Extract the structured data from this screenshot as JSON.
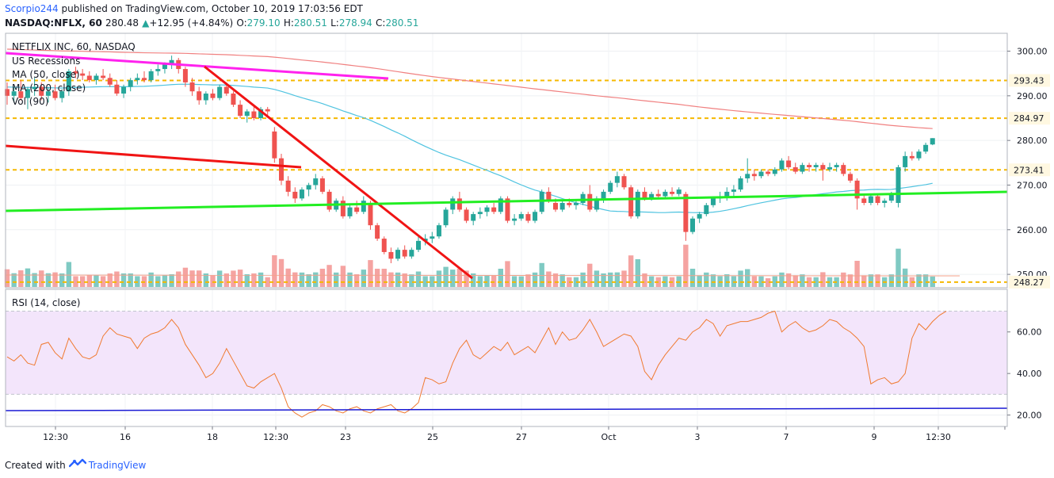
{
  "header": {
    "author": "Scorpio244",
    "published": "published on TradingView.com, October 10, 2019 17:03:56 EDT",
    "symbol": "NASDAQ:NFLX, 60",
    "last": "280.48",
    "change_arrow": "▲",
    "change": "+12.95 (+4.84%)",
    "o_label": "O:",
    "o_value": "279.10",
    "h_label": "H:",
    "h_value": "280.51",
    "l_label": "L:",
    "l_value": "278.94",
    "c_label": "C:",
    "c_value": "280.51"
  },
  "legend": {
    "title": "NETFLIX INC, 60, NASDAQ",
    "items": [
      "US Recessions",
      "MA (50, close)",
      "MA (200, close)",
      "Vol (90)"
    ],
    "rsi_title": "RSI (14, close)"
  },
  "footer": {
    "created_with": "Created with",
    "brand": "TradingView"
  },
  "colors": {
    "up": "#26a69a",
    "down": "#ef5350",
    "ma50": "#4fc3e0",
    "ma200": "#f08080",
    "magenta": "#ff22ee",
    "red_line": "#f01414",
    "green_line": "#22ee22",
    "hline": "#f5b800",
    "rsi": "#f07a30",
    "rsi_band": "#f3e5fb",
    "rsi_blue": "#1a1ad4",
    "vol_up": "#7fcac3",
    "vol_down": "#f5a3a1"
  },
  "chart_data": [
    {
      "type": "candlestick",
      "name": "NETFLIX INC, 60, NASDAQ",
      "y_axis": {
        "range": [
          247,
          304
        ],
        "ticks": [
          250,
          260,
          270,
          280,
          290,
          300
        ],
        "tick_labels": [
          "250.00",
          "260.00",
          "270.00",
          "280.00",
          "290.00",
          "300.00"
        ]
      },
      "x_axis": {
        "tick_labels": [
          "12:30",
          "16",
          "18",
          "12:30",
          "23",
          "25",
          "27",
          "Oct",
          "3",
          "7",
          "9",
          "12:30"
        ]
      },
      "price_levels": [
        {
          "value": 293.43,
          "label": "293.43"
        },
        {
          "value": 284.97,
          "label": "284.97"
        },
        {
          "value": 273.41,
          "label": "273.41"
        },
        {
          "value": 248.27,
          "label": "248.27"
        }
      ],
      "last_price": {
        "value": 280.51,
        "label": "280.51"
      },
      "candles": [
        {
          "o": 291.5,
          "h": 293,
          "l": 288,
          "c": 290
        },
        {
          "o": 290,
          "h": 292,
          "l": 288.5,
          "c": 291
        },
        {
          "o": 291,
          "h": 293.5,
          "l": 289,
          "c": 289.5
        },
        {
          "o": 289.5,
          "h": 292,
          "l": 287,
          "c": 291.5
        },
        {
          "o": 291.5,
          "h": 294,
          "l": 290,
          "c": 292
        },
        {
          "o": 292,
          "h": 293,
          "l": 289,
          "c": 290
        },
        {
          "o": 290,
          "h": 292,
          "l": 288.5,
          "c": 291
        },
        {
          "o": 291,
          "h": 292.5,
          "l": 289,
          "c": 289.5
        },
        {
          "o": 289.5,
          "h": 291.5,
          "l": 288.5,
          "c": 291
        },
        {
          "o": 291,
          "h": 296,
          "l": 290,
          "c": 295.5
        },
        {
          "o": 295.5,
          "h": 296.5,
          "l": 294,
          "c": 295
        },
        {
          "o": 295,
          "h": 296,
          "l": 293.5,
          "c": 294.5
        },
        {
          "o": 294.5,
          "h": 295.5,
          "l": 293,
          "c": 293.5
        },
        {
          "o": 293.5,
          "h": 295,
          "l": 292.5,
          "c": 294.5
        },
        {
          "o": 294.5,
          "h": 296,
          "l": 293.5,
          "c": 294
        },
        {
          "o": 294,
          "h": 295,
          "l": 292,
          "c": 292.5
        },
        {
          "o": 292.5,
          "h": 293.5,
          "l": 290,
          "c": 290.5
        },
        {
          "o": 290.5,
          "h": 292.5,
          "l": 289.5,
          "c": 292
        },
        {
          "o": 292,
          "h": 294,
          "l": 291,
          "c": 293.5
        },
        {
          "o": 293.5,
          "h": 295,
          "l": 292.5,
          "c": 294
        },
        {
          "o": 294,
          "h": 295.5,
          "l": 293,
          "c": 293.5
        },
        {
          "o": 293.5,
          "h": 296,
          "l": 293,
          "c": 295.5
        },
        {
          "o": 295.5,
          "h": 297,
          "l": 294.5,
          "c": 296
        },
        {
          "o": 296,
          "h": 297.5,
          "l": 295,
          "c": 297
        },
        {
          "o": 297,
          "h": 299,
          "l": 296,
          "c": 298
        },
        {
          "o": 298,
          "h": 298.5,
          "l": 295,
          "c": 296
        },
        {
          "o": 296,
          "h": 296.5,
          "l": 292,
          "c": 293
        },
        {
          "o": 293,
          "h": 294,
          "l": 290,
          "c": 291
        },
        {
          "o": 291,
          "h": 292,
          "l": 288,
          "c": 289
        },
        {
          "o": 289,
          "h": 291,
          "l": 288,
          "c": 290.5
        },
        {
          "o": 290.5,
          "h": 291.5,
          "l": 289,
          "c": 289.5
        },
        {
          "o": 289.5,
          "h": 292.5,
          "l": 289,
          "c": 292
        },
        {
          "o": 292,
          "h": 293,
          "l": 290,
          "c": 290.5
        },
        {
          "o": 290.5,
          "h": 291,
          "l": 287.5,
          "c": 288
        },
        {
          "o": 288,
          "h": 289,
          "l": 285,
          "c": 285.5
        },
        {
          "o": 285.5,
          "h": 287,
          "l": 284,
          "c": 286.5
        },
        {
          "o": 286.5,
          "h": 287.5,
          "l": 284.5,
          "c": 285
        },
        {
          "o": 285,
          "h": 287.5,
          "l": 284.5,
          "c": 287
        },
        {
          "o": 287,
          "h": 287.5,
          "l": 285.5,
          "c": 286.5
        },
        {
          "o": 282,
          "h": 283,
          "l": 275,
          "c": 276
        },
        {
          "o": 276,
          "h": 277,
          "l": 270,
          "c": 271
        },
        {
          "o": 271,
          "h": 272,
          "l": 267.5,
          "c": 268.5
        },
        {
          "o": 268.5,
          "h": 269.5,
          "l": 266,
          "c": 267
        },
        {
          "o": 267,
          "h": 269.5,
          "l": 266.5,
          "c": 269
        },
        {
          "o": 269,
          "h": 270.5,
          "l": 267.5,
          "c": 270
        },
        {
          "o": 270,
          "h": 272.5,
          "l": 269,
          "c": 271.5
        },
        {
          "o": 271.5,
          "h": 272,
          "l": 268,
          "c": 268.5
        },
        {
          "o": 268.5,
          "h": 269,
          "l": 264,
          "c": 264.5
        },
        {
          "o": 264.5,
          "h": 267,
          "l": 264,
          "c": 266.5
        },
        {
          "o": 266.5,
          "h": 267.5,
          "l": 262.5,
          "c": 263
        },
        {
          "o": 263,
          "h": 265.5,
          "l": 262.5,
          "c": 265
        },
        {
          "o": 265,
          "h": 266.5,
          "l": 263.5,
          "c": 264
        },
        {
          "o": 264,
          "h": 267.5,
          "l": 263.5,
          "c": 266.5
        },
        {
          "o": 266,
          "h": 266.5,
          "l": 260,
          "c": 261
        },
        {
          "o": 261,
          "h": 261.5,
          "l": 257.5,
          "c": 258
        },
        {
          "o": 258,
          "h": 258.5,
          "l": 254.5,
          "c": 255
        },
        {
          "o": 255,
          "h": 256,
          "l": 252.5,
          "c": 253.5
        },
        {
          "o": 253.5,
          "h": 256,
          "l": 253,
          "c": 255.5
        },
        {
          "o": 255.5,
          "h": 256.5,
          "l": 253.5,
          "c": 254
        },
        {
          "o": 254,
          "h": 256,
          "l": 253.5,
          "c": 255.5
        },
        {
          "o": 255.5,
          "h": 258.5,
          "l": 255,
          "c": 257.5
        },
        {
          "o": 257.5,
          "h": 259,
          "l": 256.5,
          "c": 258
        },
        {
          "o": 258,
          "h": 259.5,
          "l": 257,
          "c": 258.5
        },
        {
          "o": 258.5,
          "h": 261.5,
          "l": 258,
          "c": 261
        },
        {
          "o": 261,
          "h": 265,
          "l": 260.5,
          "c": 264.5
        },
        {
          "o": 264.5,
          "h": 267.5,
          "l": 263.5,
          "c": 267
        },
        {
          "o": 267,
          "h": 268.5,
          "l": 264,
          "c": 264.5
        },
        {
          "o": 264.5,
          "h": 265,
          "l": 261.5,
          "c": 262
        },
        {
          "o": 262,
          "h": 264,
          "l": 261,
          "c": 263.5
        },
        {
          "o": 263.5,
          "h": 265,
          "l": 262.5,
          "c": 264
        },
        {
          "o": 264,
          "h": 265.5,
          "l": 263,
          "c": 265
        },
        {
          "o": 265,
          "h": 266,
          "l": 263.5,
          "c": 264
        },
        {
          "o": 264,
          "h": 267.5,
          "l": 263.5,
          "c": 267
        },
        {
          "o": 267,
          "h": 267.5,
          "l": 261.5,
          "c": 262
        },
        {
          "o": 262,
          "h": 263.5,
          "l": 261,
          "c": 262.5
        },
        {
          "o": 262.5,
          "h": 264,
          "l": 262,
          "c": 263.5
        },
        {
          "o": 263.5,
          "h": 264,
          "l": 261.5,
          "c": 262
        },
        {
          "o": 262,
          "h": 264.5,
          "l": 261.5,
          "c": 264
        },
        {
          "o": 264,
          "h": 269,
          "l": 263.5,
          "c": 268.5
        },
        {
          "o": 268.5,
          "h": 269.5,
          "l": 266,
          "c": 266.5
        },
        {
          "o": 266,
          "h": 267,
          "l": 264,
          "c": 264.5
        },
        {
          "o": 264.5,
          "h": 266.5,
          "l": 264,
          "c": 266
        },
        {
          "o": 266,
          "h": 267,
          "l": 265,
          "c": 265.5
        },
        {
          "o": 265.5,
          "h": 266.5,
          "l": 264.5,
          "c": 266
        },
        {
          "o": 266,
          "h": 268.5,
          "l": 265.5,
          "c": 268
        },
        {
          "o": 268,
          "h": 270,
          "l": 264,
          "c": 264.5
        },
        {
          "o": 264.5,
          "h": 267.5,
          "l": 264,
          "c": 267
        },
        {
          "o": 267,
          "h": 269,
          "l": 266,
          "c": 268.5
        },
        {
          "o": 268.5,
          "h": 271,
          "l": 268,
          "c": 270.5
        },
        {
          "o": 270.5,
          "h": 273,
          "l": 269.5,
          "c": 272
        },
        {
          "o": 272,
          "h": 272.5,
          "l": 269,
          "c": 269.5
        },
        {
          "o": 269.5,
          "h": 270,
          "l": 262.5,
          "c": 263
        },
        {
          "o": 263,
          "h": 269,
          "l": 262.5,
          "c": 268.5
        },
        {
          "o": 268.5,
          "h": 269.5,
          "l": 266.5,
          "c": 267
        },
        {
          "o": 267,
          "h": 268.5,
          "l": 266.5,
          "c": 268
        },
        {
          "o": 268,
          "h": 269,
          "l": 267,
          "c": 267.5
        },
        {
          "o": 267.5,
          "h": 269,
          "l": 267,
          "c": 268.5
        },
        {
          "o": 268.5,
          "h": 269.5,
          "l": 267.5,
          "c": 268
        },
        {
          "o": 268,
          "h": 269.5,
          "l": 267.5,
          "c": 269
        },
        {
          "o": 268,
          "h": 268.5,
          "l": 257.5,
          "c": 259.5
        },
        {
          "o": 259.5,
          "h": 263,
          "l": 259,
          "c": 262.5
        },
        {
          "o": 262.5,
          "h": 264,
          "l": 261.5,
          "c": 263.5
        },
        {
          "o": 263.5,
          "h": 266,
          "l": 263,
          "c": 265.5
        },
        {
          "o": 265.5,
          "h": 267.5,
          "l": 265,
          "c": 267
        },
        {
          "o": 267,
          "h": 268.5,
          "l": 266,
          "c": 267.5
        },
        {
          "o": 267.5,
          "h": 269.5,
          "l": 266.5,
          "c": 268.5
        },
        {
          "o": 268.5,
          "h": 270,
          "l": 267.5,
          "c": 269
        },
        {
          "o": 269,
          "h": 272,
          "l": 268.5,
          "c": 271.5
        },
        {
          "o": 271.5,
          "h": 276,
          "l": 270.5,
          "c": 272.5
        },
        {
          "o": 272.5,
          "h": 273.5,
          "l": 271,
          "c": 272
        },
        {
          "o": 272,
          "h": 273.5,
          "l": 271.5,
          "c": 273
        },
        {
          "o": 273,
          "h": 273.5,
          "l": 272,
          "c": 272.5
        },
        {
          "o": 272.5,
          "h": 274,
          "l": 272,
          "c": 273.5
        },
        {
          "o": 273.5,
          "h": 276,
          "l": 273,
          "c": 275.5
        },
        {
          "o": 275.5,
          "h": 276.5,
          "l": 273.5,
          "c": 274
        },
        {
          "o": 274,
          "h": 275,
          "l": 272.5,
          "c": 273
        },
        {
          "o": 273,
          "h": 275,
          "l": 272.5,
          "c": 274.5
        },
        {
          "o": 274.5,
          "h": 275,
          "l": 273,
          "c": 274
        },
        {
          "o": 274,
          "h": 275,
          "l": 273,
          "c": 274.5
        },
        {
          "o": 274.5,
          "h": 275,
          "l": 271,
          "c": 273.5
        },
        {
          "o": 273.5,
          "h": 275,
          "l": 273,
          "c": 274
        },
        {
          "o": 274,
          "h": 275,
          "l": 273,
          "c": 274.5
        },
        {
          "o": 274.5,
          "h": 275,
          "l": 272,
          "c": 272.5
        },
        {
          "o": 272.5,
          "h": 273,
          "l": 270.5,
          "c": 271
        },
        {
          "o": 271,
          "h": 271.5,
          "l": 264.5,
          "c": 267
        },
        {
          "o": 267,
          "h": 268,
          "l": 265.5,
          "c": 266
        },
        {
          "o": 266,
          "h": 268,
          "l": 265.5,
          "c": 267.5
        },
        {
          "o": 267.5,
          "h": 268,
          "l": 265.5,
          "c": 266
        },
        {
          "o": 266,
          "h": 267,
          "l": 265,
          "c": 266.5
        },
        {
          "o": 266.5,
          "h": 268.5,
          "l": 266,
          "c": 268
        },
        {
          "o": 266,
          "h": 274.5,
          "l": 265,
          "c": 274
        },
        {
          "o": 274,
          "h": 277.5,
          "l": 273,
          "c": 276.5
        },
        {
          "o": 276.5,
          "h": 277.5,
          "l": 275.5,
          "c": 276
        },
        {
          "o": 276,
          "h": 278,
          "l": 275.5,
          "c": 277.5
        },
        {
          "o": 277.5,
          "h": 279.5,
          "l": 277,
          "c": 279
        },
        {
          "o": 279.1,
          "h": 280.51,
          "l": 278.94,
          "c": 280.51
        }
      ]
    },
    {
      "type": "line",
      "name": "RSI (14, close)",
      "y_axis": {
        "range": [
          14.5,
          80.5
        ],
        "ticks": [
          20,
          40,
          60
        ],
        "tick_labels": [
          "20.00",
          "40.00",
          "60.00"
        ],
        "band": [
          30,
          70
        ]
      },
      "values": [
        48,
        46,
        49,
        45,
        44,
        54,
        55,
        50,
        47,
        57,
        52,
        48,
        47,
        49,
        58,
        62,
        59,
        58,
        57,
        52,
        57,
        59,
        60,
        62,
        66,
        62,
        54,
        49,
        44,
        38,
        40,
        45,
        52,
        46,
        40,
        34,
        33,
        36,
        38,
        40,
        33,
        24,
        21,
        19,
        21,
        22,
        25,
        24,
        22,
        21,
        23,
        24,
        22,
        21,
        23,
        24,
        25,
        22,
        21,
        23,
        26,
        38,
        37,
        35,
        36,
        45,
        52,
        56,
        49,
        47,
        50,
        53,
        51,
        55,
        49,
        51,
        53,
        50,
        56,
        62,
        54,
        60,
        56,
        57,
        61,
        66,
        60,
        53,
        55,
        57,
        59,
        58,
        53,
        41,
        37,
        44,
        49,
        53,
        57,
        56,
        60,
        62,
        66,
        64,
        58,
        63,
        64,
        65,
        65,
        66,
        67,
        69,
        70,
        60,
        63,
        65,
        62,
        60,
        61,
        63,
        66,
        65,
        62,
        60,
        57,
        53,
        35,
        37,
        38,
        35,
        36,
        40,
        57,
        64,
        61,
        65,
        68,
        70
      ]
    }
  ]
}
